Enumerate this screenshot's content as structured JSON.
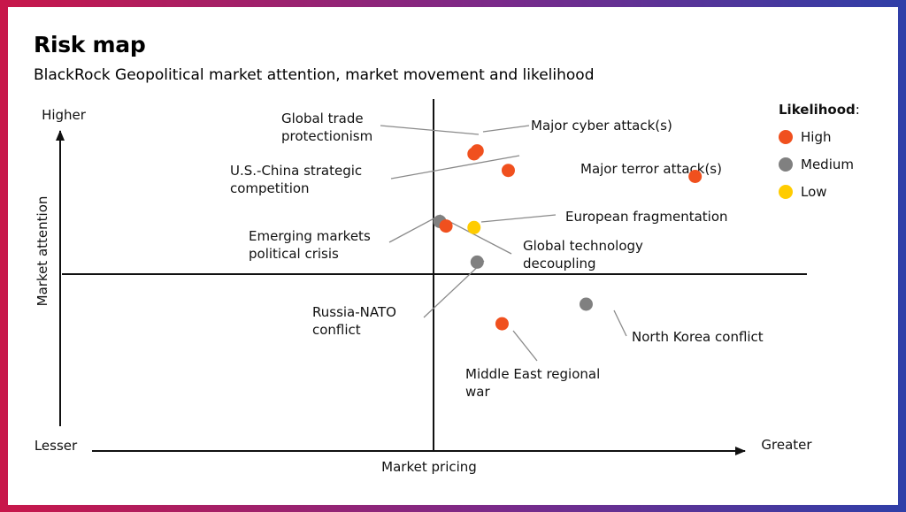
{
  "title": "Risk map",
  "subtitle": "BlackRock Geopolitical market attention, market movement and likelihood",
  "chart_data": {
    "type": "scatter",
    "xlabel": "Market pricing",
    "ylabel": "Market attention",
    "x_axis_ends": {
      "low": "Lesser",
      "high": "Greater"
    },
    "y_axis_ends": {
      "low": "",
      "high": "Higher"
    },
    "xlim": [
      -1,
      1
    ],
    "ylim": [
      -1,
      1
    ],
    "grid": false,
    "legend": {
      "title": "Likelihood",
      "title_suffix": ":",
      "placement": "top-right",
      "entries": [
        {
          "name": "High",
          "color": "#f0501e"
        },
        {
          "name": "Medium",
          "color": "#808080"
        },
        {
          "name": "Low",
          "color": "#ffcc00"
        }
      ]
    },
    "points": [
      {
        "label": [
          "Global trade",
          "protectionism"
        ],
        "likelihood": "High",
        "x": 0.13,
        "y": 0.8
      },
      {
        "label": [
          "Major cyber attack(s)"
        ],
        "likelihood": "High",
        "x": 0.14,
        "y": 0.82
      },
      {
        "label": [
          "U.S.-China strategic",
          "competition"
        ],
        "likelihood": "High",
        "x": 0.24,
        "y": 0.69
      },
      {
        "label": [
          "Major terror attack(s)"
        ],
        "likelihood": "High",
        "x": 0.84,
        "y": 0.65
      },
      {
        "label": [
          "Emerging markets",
          "political crisis"
        ],
        "likelihood": "Medium",
        "x": 0.02,
        "y": 0.35
      },
      {
        "label": [
          "Global technology",
          "decoupling"
        ],
        "likelihood": "High",
        "x": 0.04,
        "y": 0.32
      },
      {
        "label": [
          "European fragmentation"
        ],
        "likelihood": "Low",
        "x": 0.13,
        "y": 0.31
      },
      {
        "label": [
          "Russia-NATO",
          "conflict"
        ],
        "likelihood": "Medium",
        "x": 0.14,
        "y": 0.08
      },
      {
        "label": [
          "North Korea conflict"
        ],
        "likelihood": "Medium",
        "x": 0.49,
        "y": -0.2
      },
      {
        "label": [
          "Middle East regional",
          "war"
        ],
        "likelihood": "High",
        "x": 0.22,
        "y": -0.33
      }
    ]
  }
}
